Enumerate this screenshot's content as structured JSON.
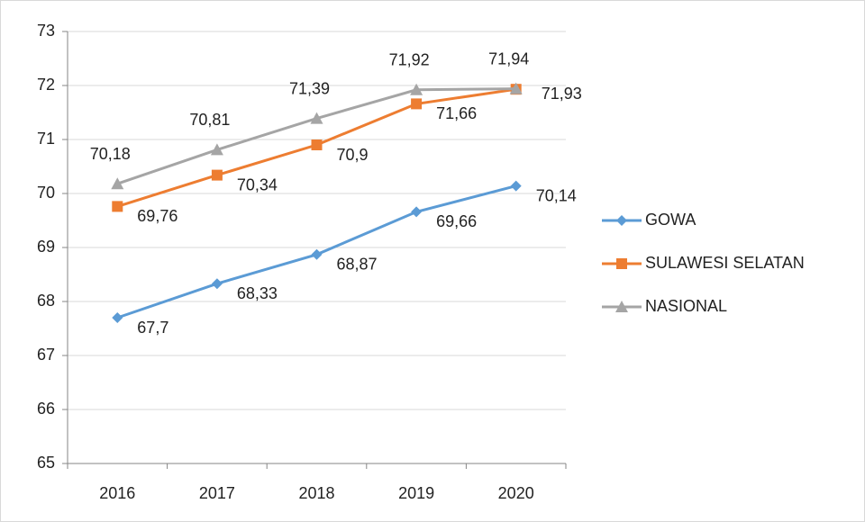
{
  "chart_data": {
    "type": "line",
    "categories": [
      "2016",
      "2017",
      "2018",
      "2019",
      "2020"
    ],
    "series": [
      {
        "name": "GOWA",
        "color": "#5b9bd5",
        "marker": "diamond",
        "values": [
          67.7,
          68.33,
          68.87,
          69.66,
          70.14
        ],
        "value_labels": [
          "67,7",
          "68,33",
          "68,87",
          "69,66",
          "70,14"
        ]
      },
      {
        "name": "SULAWESI SELATAN",
        "color": "#ed7d31",
        "marker": "square",
        "values": [
          69.76,
          70.34,
          70.9,
          71.66,
          71.93
        ],
        "value_labels": [
          "69,76",
          "70,34",
          "70,9",
          "71,66",
          "71,93"
        ]
      },
      {
        "name": "NASIONAL",
        "color": "#a5a5a5",
        "marker": "triangle",
        "values": [
          70.18,
          70.81,
          71.39,
          71.92,
          71.94
        ],
        "value_labels": [
          "70,18",
          "70,81",
          "71,39",
          "71,92",
          "71,94"
        ]
      }
    ],
    "ylim": [
      65,
      73
    ],
    "yticks": [
      65,
      66,
      67,
      68,
      69,
      70,
      71,
      72,
      73
    ],
    "grid": true,
    "legend": "right"
  }
}
